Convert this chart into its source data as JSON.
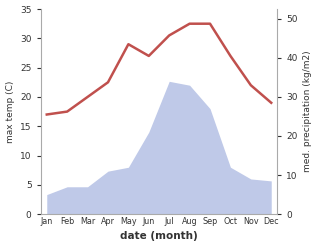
{
  "months": [
    "Jan",
    "Feb",
    "Mar",
    "Apr",
    "May",
    "Jun",
    "Jul",
    "Aug",
    "Sep",
    "Oct",
    "Nov",
    "Dec"
  ],
  "temperature": [
    17.0,
    17.5,
    20.0,
    22.5,
    29.0,
    27.0,
    30.5,
    32.5,
    32.5,
    27.0,
    22.0,
    19.0
  ],
  "precipitation": [
    5.0,
    7.0,
    7.0,
    11.0,
    12.0,
    21.0,
    34.0,
    33.0,
    27.0,
    12.0,
    9.0,
    8.5
  ],
  "temp_color": "#c0504d",
  "precip_fill_color": "#bfc9e8",
  "temp_ylim": [
    0,
    35
  ],
  "precip_ylim": [
    0,
    52.5
  ],
  "temp_yticks": [
    0,
    5,
    10,
    15,
    20,
    25,
    30,
    35
  ],
  "precip_yticks": [
    0,
    10,
    20,
    30,
    40,
    50
  ],
  "xlabel": "date (month)",
  "ylabel_left": "max temp (C)",
  "ylabel_right": "med. precipitation (kg/m2)",
  "bg_color": "#ffffff",
  "precip_scale": 0.6667
}
